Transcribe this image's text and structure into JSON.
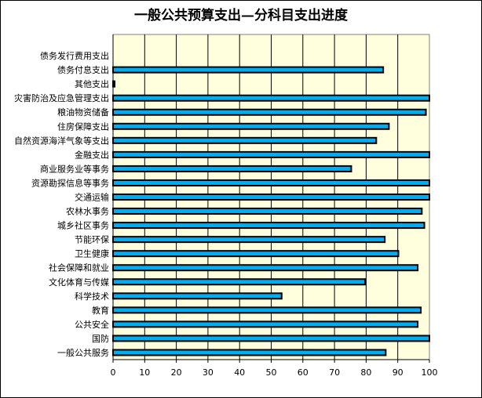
{
  "chart_data": {
    "type": "bar",
    "orientation": "horizontal",
    "title": "一般公共预算支出—分科目支出进度",
    "xlabel": "",
    "ylabel": "",
    "xlim": [
      0,
      100
    ],
    "x_ticks": [
      "0",
      "10",
      "20",
      "30",
      "40",
      "50",
      "60",
      "70",
      "80",
      "90",
      "100"
    ],
    "grid": true,
    "legend": "none",
    "categories": [
      "债务发行费用支出",
      "债务付息支出",
      "其他支出",
      "灾害防治及应急管理支出",
      "粮油物资储备",
      "住房保障支出",
      "自然资源海洋气象等支出",
      "金融支出",
      "商业服务业等事务",
      "资源勘探信息等事务",
      "交通运输",
      "农林水事务",
      "城乡社区事务",
      "节能环保",
      "卫生健康",
      "社会保障和就业",
      "文化体育与传媒",
      "科学技术",
      "教育",
      "公共安全",
      "国防",
      "一般公共服务"
    ],
    "values": [
      0,
      85.4,
      0.5,
      100,
      98.9,
      87.2,
      83.2,
      100,
      75.3,
      100,
      100,
      97.6,
      98.4,
      85.9,
      90.2,
      96.3,
      79.7,
      53.3,
      97.3,
      96.3,
      100,
      86.2
    ],
    "colors": {
      "bar": "#00AEEF",
      "bar_border": "#000000",
      "plot_bg": "#FFFFDD",
      "grid": "#000000"
    }
  }
}
